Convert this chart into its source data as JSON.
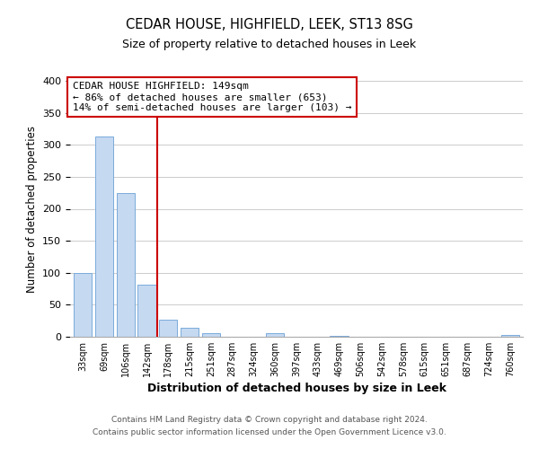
{
  "title": "CEDAR HOUSE, HIGHFIELD, LEEK, ST13 8SG",
  "subtitle": "Size of property relative to detached houses in Leek",
  "xlabel": "Distribution of detached houses by size in Leek",
  "ylabel": "Number of detached properties",
  "bar_labels": [
    "33sqm",
    "69sqm",
    "106sqm",
    "142sqm",
    "178sqm",
    "215sqm",
    "251sqm",
    "287sqm",
    "324sqm",
    "360sqm",
    "397sqm",
    "433sqm",
    "469sqm",
    "506sqm",
    "542sqm",
    "578sqm",
    "615sqm",
    "651sqm",
    "687sqm",
    "724sqm",
    "760sqm"
  ],
  "bar_values": [
    99,
    313,
    225,
    82,
    26,
    14,
    5,
    0,
    0,
    5,
    0,
    0,
    2,
    0,
    0,
    0,
    0,
    0,
    0,
    0,
    3
  ],
  "bar_color": "#c5d9f1",
  "bar_edge_color": "#7aabdb",
  "vline_x": 3.5,
  "vline_color": "#cc0000",
  "ylim": [
    0,
    400
  ],
  "yticks": [
    0,
    50,
    100,
    150,
    200,
    250,
    300,
    350,
    400
  ],
  "annotation_title": "CEDAR HOUSE HIGHFIELD: 149sqm",
  "annotation_line1": "← 86% of detached houses are smaller (653)",
  "annotation_line2": "14% of semi-detached houses are larger (103) →",
  "annotation_box_color": "#cc0000",
  "footer1": "Contains HM Land Registry data © Crown copyright and database right 2024.",
  "footer2": "Contains public sector information licensed under the Open Government Licence v3.0.",
  "background_color": "#ffffff",
  "grid_color": "#cccccc"
}
